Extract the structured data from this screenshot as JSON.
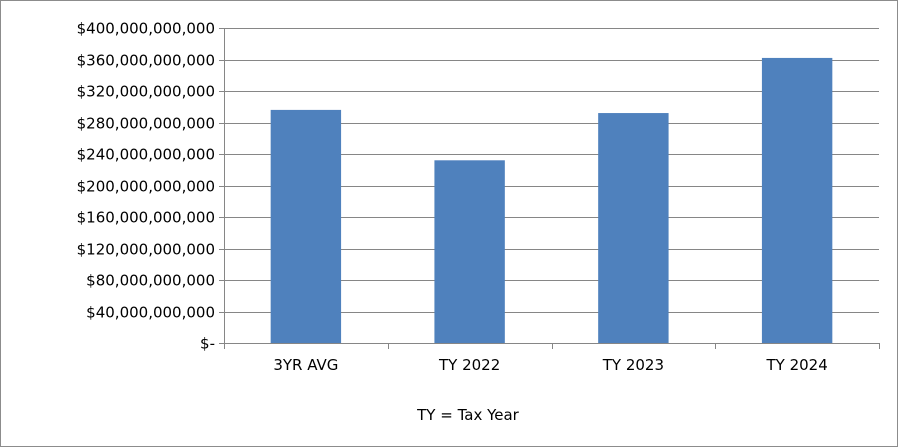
{
  "chart_data": {
    "type": "bar",
    "categories": [
      "3YR AVG",
      "TY 2022",
      "TY 2023",
      "TY 2024"
    ],
    "values": [
      296000000000,
      232000000000,
      292000000000,
      362000000000
    ],
    "ylim": [
      0,
      400000000000
    ],
    "yticks": [
      0,
      40000000000,
      80000000000,
      120000000000,
      160000000000,
      200000000000,
      240000000000,
      280000000000,
      320000000000,
      360000000000,
      400000000000
    ],
    "ytick_labels": [
      "$-",
      "$40,000,000,000",
      "$80,000,000,000",
      "$120,000,000,000",
      "$160,000,000,000",
      "$200,000,000,000",
      "$240,000,000,000",
      "$280,000,000,000",
      "$320,000,000,000",
      "$360,000,000,000",
      "$400,000,000,000"
    ],
    "grid": true,
    "legend": "none",
    "bar_color": "#4f81bd",
    "gridline_color": "#868686",
    "note": "TY = Tax Year"
  }
}
